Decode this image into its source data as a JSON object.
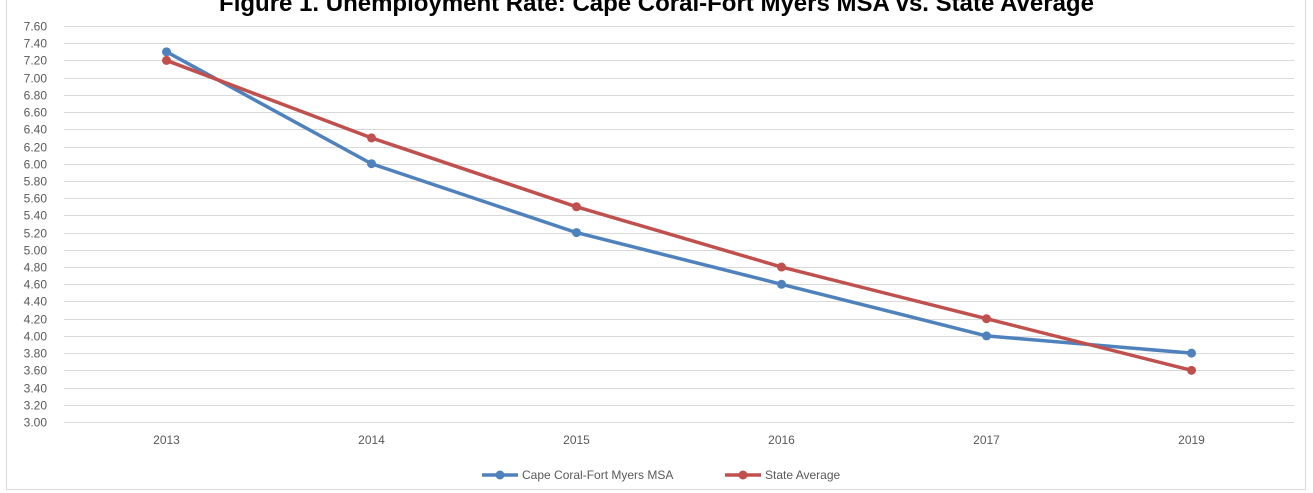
{
  "chart_data": {
    "type": "line",
    "title": "Figure 1. Unemployment Rate: Cape Coral-Fort Myers MSA vs. State Average",
    "xlabel": "",
    "ylabel": "",
    "categories": [
      "2013",
      "2014",
      "2015",
      "2016",
      "2017",
      "2019"
    ],
    "ylim": [
      3.0,
      7.6
    ],
    "ytick_step": 0.2,
    "grid": true,
    "legend_position": "bottom",
    "series": [
      {
        "name": "Cape Coral-Fort Myers MSA",
        "color": "#4f81bd",
        "values": [
          7.3,
          6.0,
          5.2,
          4.6,
          4.0,
          3.8
        ]
      },
      {
        "name": "State Average",
        "color": "#c0504d",
        "values": [
          7.2,
          6.3,
          5.5,
          4.8,
          4.2,
          3.6
        ]
      }
    ]
  }
}
